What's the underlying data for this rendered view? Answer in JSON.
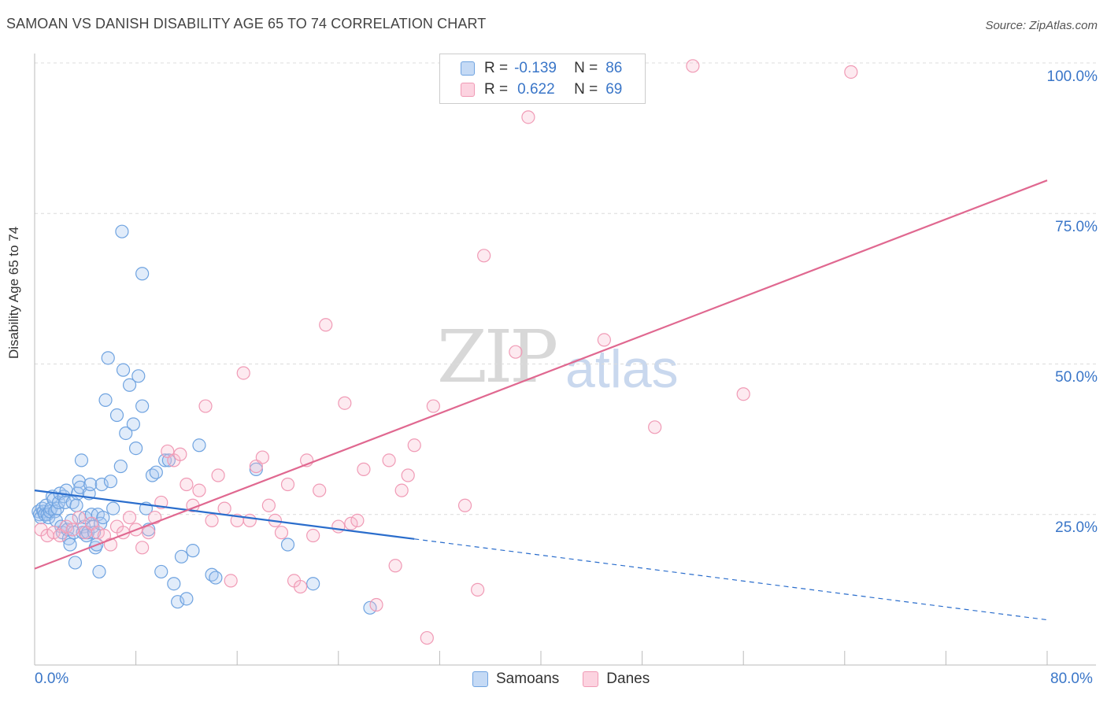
{
  "title": "SAMOAN VS DANISH DISABILITY AGE 65 TO 74 CORRELATION CHART",
  "source": "Source: ZipAtlas.com",
  "watermark": {
    "zip": "ZIP",
    "atlas": "atlas"
  },
  "legend": {
    "rows": [
      {
        "r_label": "R =",
        "r_value": "-0.139",
        "n_label": "N =",
        "n_value": "86",
        "color": "#a8c8f0"
      },
      {
        "r_label": "R =",
        "r_value": "0.622",
        "n_label": "N =",
        "n_value": "69",
        "color": "#f7b8cc"
      }
    ]
  },
  "bottom_legend": {
    "samoans": "Samoans",
    "danes": "Danes"
  },
  "x_ticks": {
    "min": "0.0%",
    "max": "80.0%"
  },
  "y_ticks": [
    "100.0%",
    "75.0%",
    "50.0%",
    "25.0%"
  ],
  "ylabel": "Disability Age 65 to 74",
  "colors": {
    "samoan": "#6fa3e0",
    "samoan_line": "#2a6dcc",
    "dane": "#f09ab5",
    "dane_line": "#e06890"
  },
  "chart_data": {
    "type": "scatter",
    "xlabel": "",
    "ylabel": "Disability Age 65 to 74",
    "xlim": [
      0,
      80
    ],
    "ylim": [
      0,
      100
    ],
    "grid": true,
    "series": [
      {
        "name": "Samoans",
        "points": [
          [
            0.3,
            25.5
          ],
          [
            0.4,
            25
          ],
          [
            0.5,
            24.5
          ],
          [
            0.6,
            26
          ],
          [
            0.7,
            25.5
          ],
          [
            0.8,
            25
          ],
          [
            0.9,
            26.5
          ],
          [
            1.0,
            25
          ],
          [
            1.1,
            24.5
          ],
          [
            1.2,
            25.5
          ],
          [
            1.3,
            26
          ],
          [
            1.4,
            28
          ],
          [
            1.5,
            27.5
          ],
          [
            1.6,
            25.5
          ],
          [
            1.7,
            24
          ],
          [
            1.8,
            26
          ],
          [
            1.9,
            27
          ],
          [
            2.0,
            28.5
          ],
          [
            2.1,
            23
          ],
          [
            2.2,
            22
          ],
          [
            2.3,
            28
          ],
          [
            2.4,
            27
          ],
          [
            2.5,
            29
          ],
          [
            2.6,
            22.5
          ],
          [
            2.7,
            21
          ],
          [
            2.8,
            20
          ],
          [
            2.9,
            24
          ],
          [
            3.0,
            27
          ],
          [
            3.1,
            22
          ],
          [
            3.2,
            17
          ],
          [
            3.3,
            26.5
          ],
          [
            3.4,
            28.5
          ],
          [
            3.5,
            30.5
          ],
          [
            3.6,
            29.5
          ],
          [
            3.7,
            34
          ],
          [
            3.8,
            22
          ],
          [
            3.9,
            23
          ],
          [
            4.0,
            24.5
          ],
          [
            4.1,
            21.5
          ],
          [
            4.2,
            22
          ],
          [
            4.3,
            28.5
          ],
          [
            4.4,
            30
          ],
          [
            4.5,
            25
          ],
          [
            4.6,
            23
          ],
          [
            4.7,
            22
          ],
          [
            4.8,
            19.5
          ],
          [
            4.9,
            20
          ],
          [
            5.0,
            25
          ],
          [
            5.1,
            15.5
          ],
          [
            5.2,
            23.5
          ],
          [
            5.3,
            30
          ],
          [
            5.4,
            24.5
          ],
          [
            5.6,
            44
          ],
          [
            5.8,
            51
          ],
          [
            6.0,
            30.5
          ],
          [
            6.2,
            26
          ],
          [
            6.5,
            41.5
          ],
          [
            6.8,
            33
          ],
          [
            7.0,
            49
          ],
          [
            7.2,
            38.5
          ],
          [
            7.5,
            46.5
          ],
          [
            7.8,
            40
          ],
          [
            8.0,
            36
          ],
          [
            8.2,
            48
          ],
          [
            8.5,
            43
          ],
          [
            8.8,
            26
          ],
          [
            9.0,
            22.5
          ],
          [
            9.3,
            31.5
          ],
          [
            9.6,
            32
          ],
          [
            10.0,
            15.5
          ],
          [
            10.3,
            34
          ],
          [
            10.6,
            34
          ],
          [
            11.0,
            13.5
          ],
          [
            11.3,
            10.5
          ],
          [
            11.6,
            18
          ],
          [
            12.0,
            11
          ],
          [
            12.5,
            19
          ],
          [
            13.0,
            36.5
          ],
          [
            14.0,
            15
          ],
          [
            14.3,
            14.5
          ],
          [
            6.9,
            72
          ],
          [
            8.5,
            65
          ],
          [
            17.5,
            32.5
          ],
          [
            20.0,
            20
          ],
          [
            22.0,
            13.5
          ],
          [
            26.5,
            9.5
          ]
        ]
      },
      {
        "name": "Danes",
        "points": [
          [
            0.5,
            22.5
          ],
          [
            1.0,
            21.5
          ],
          [
            1.5,
            22
          ],
          [
            2.0,
            21.5
          ],
          [
            2.5,
            23
          ],
          [
            3.0,
            22.5
          ],
          [
            3.5,
            24.5
          ],
          [
            4.0,
            22
          ],
          [
            4.5,
            23.5
          ],
          [
            5.0,
            22
          ],
          [
            5.5,
            21.5
          ],
          [
            6.0,
            20
          ],
          [
            6.5,
            23
          ],
          [
            7.0,
            22
          ],
          [
            7.5,
            24.5
          ],
          [
            8.0,
            22.5
          ],
          [
            8.5,
            19.5
          ],
          [
            9.0,
            22
          ],
          [
            9.5,
            24.5
          ],
          [
            10.0,
            27
          ],
          [
            10.5,
            35.5
          ],
          [
            11.0,
            34
          ],
          [
            11.5,
            35
          ],
          [
            12.0,
            30
          ],
          [
            12.5,
            26.5
          ],
          [
            13.0,
            29
          ],
          [
            13.5,
            43
          ],
          [
            14.0,
            24
          ],
          [
            14.5,
            31.5
          ],
          [
            15.0,
            26
          ],
          [
            15.5,
            14
          ],
          [
            16.0,
            24
          ],
          [
            16.5,
            48.5
          ],
          [
            17.0,
            24
          ],
          [
            17.5,
            33
          ],
          [
            18.0,
            34.5
          ],
          [
            18.5,
            26.5
          ],
          [
            19.0,
            24
          ],
          [
            19.5,
            22
          ],
          [
            20.0,
            30
          ],
          [
            20.5,
            14
          ],
          [
            21.0,
            13
          ],
          [
            21.5,
            34
          ],
          [
            22.0,
            21.5
          ],
          [
            22.5,
            29
          ],
          [
            23.0,
            56.5
          ],
          [
            24.0,
            23
          ],
          [
            24.5,
            43.5
          ],
          [
            25.0,
            23.5
          ],
          [
            25.5,
            24
          ],
          [
            26.0,
            32.5
          ],
          [
            27.0,
            10
          ],
          [
            28.0,
            34
          ],
          [
            28.5,
            16.5
          ],
          [
            29.0,
            29
          ],
          [
            29.5,
            31.5
          ],
          [
            30.0,
            36.5
          ],
          [
            31.0,
            4.5
          ],
          [
            31.5,
            43
          ],
          [
            34.0,
            26.5
          ],
          [
            35.0,
            12.5
          ],
          [
            35.5,
            68
          ],
          [
            38.0,
            52
          ],
          [
            39.0,
            91
          ],
          [
            45.0,
            54
          ],
          [
            49.0,
            39.5
          ],
          [
            52.0,
            99.5
          ],
          [
            56.0,
            45
          ],
          [
            64.5,
            98.5
          ]
        ]
      }
    ],
    "trend_lines": [
      {
        "series": "Samoans",
        "x_solid": [
          0,
          30
        ],
        "x_dashed": [
          30,
          80
        ],
        "y_at_0": 29,
        "y_at_80": 7.5
      },
      {
        "series": "Danes",
        "x": [
          0,
          80
        ],
        "y_at_0": 16,
        "y_at_80": 80.5
      }
    ]
  }
}
